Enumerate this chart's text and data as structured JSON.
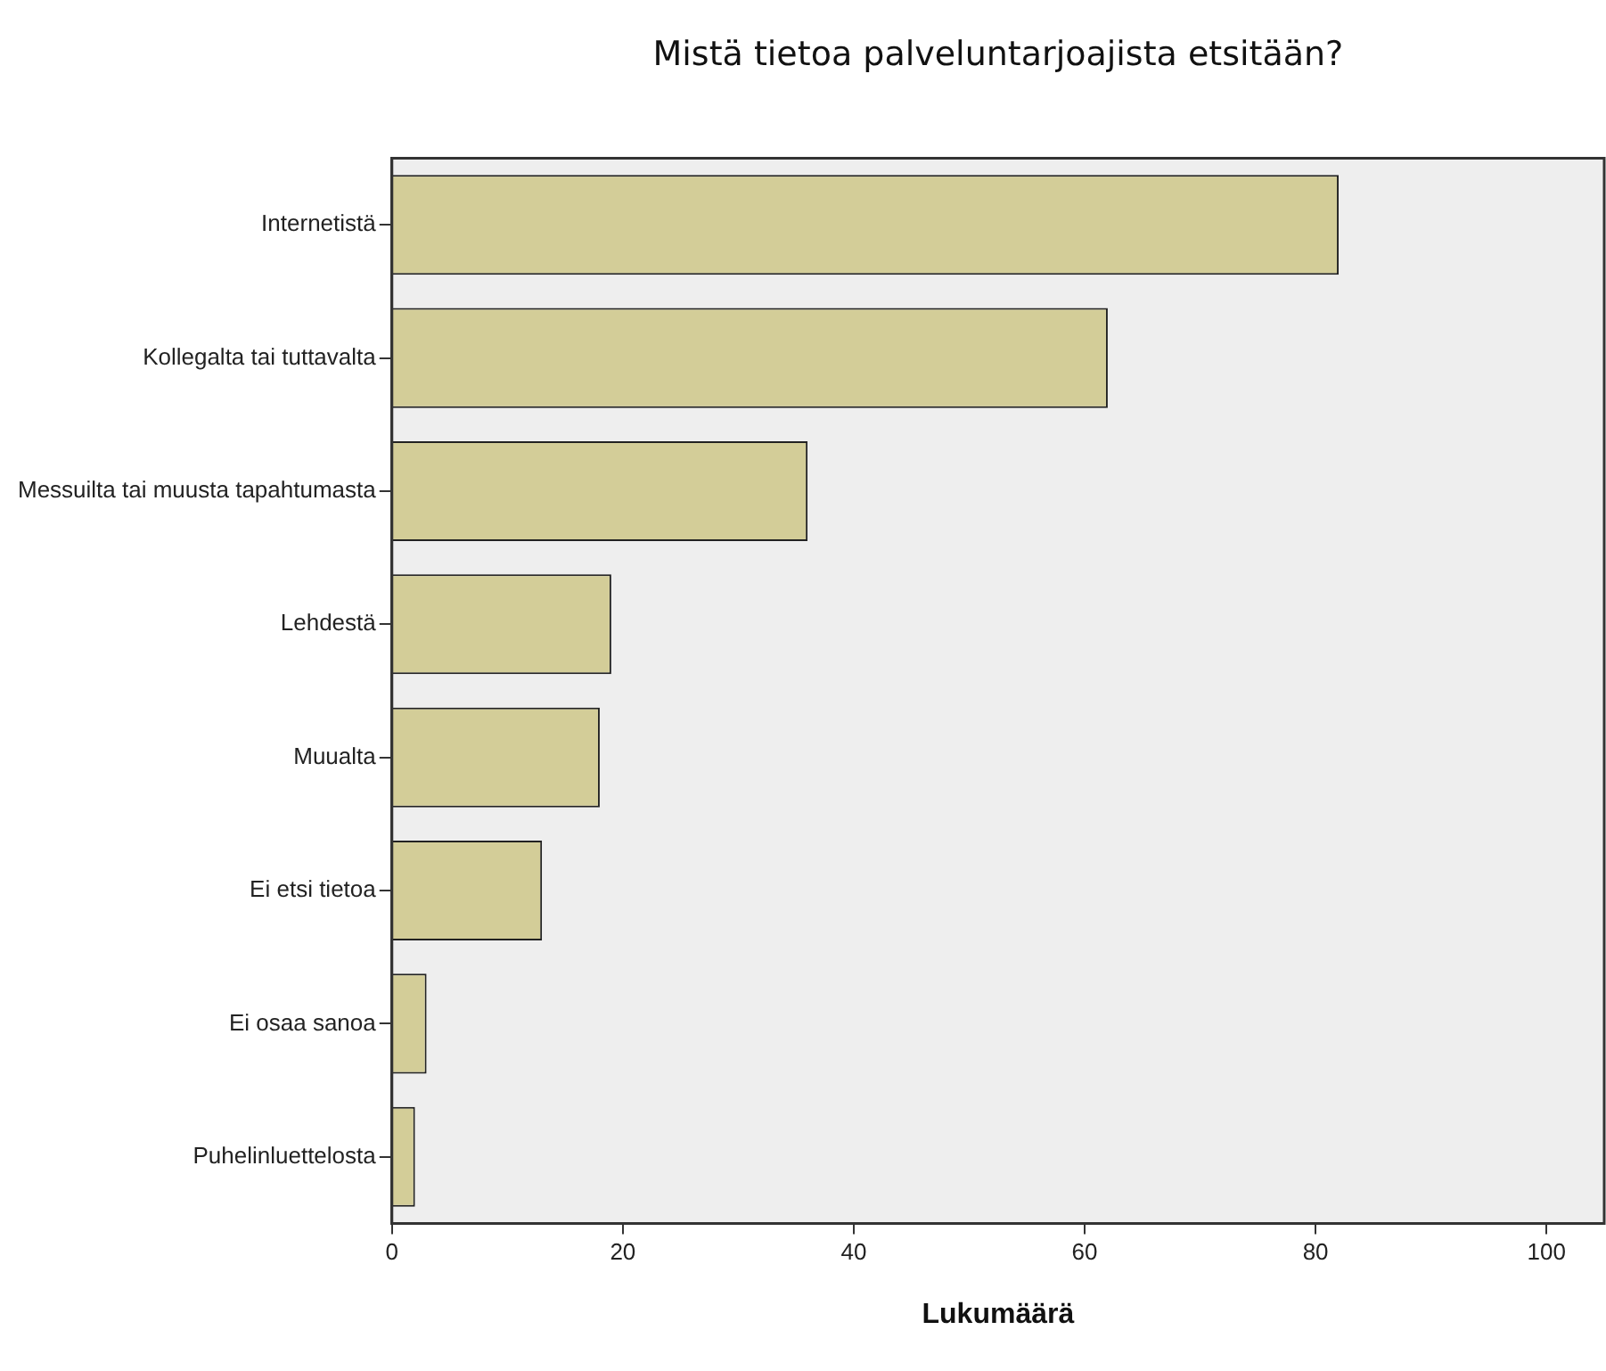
{
  "chart_data": {
    "type": "bar",
    "orientation": "horizontal",
    "title": "Mistä tietoa palveluntarjoajista etsitään?",
    "xlabel": "Lukumäärä",
    "categories": [
      "Internetistä",
      "Kollegalta tai tuttavalta",
      "Messuilta tai muusta tapahtumasta",
      "Lehdestä",
      "Muualta",
      "Ei etsi tietoa",
      "Ei osaa sanoa",
      "Puhelinluettelosta"
    ],
    "values": [
      82,
      62,
      36,
      19,
      18,
      13,
      3,
      2
    ],
    "color": "#d3cd98",
    "xlim": [
      0,
      105
    ],
    "xticks": [
      0,
      20,
      40,
      60,
      80,
      100
    ],
    "grid": false,
    "legend": false
  }
}
